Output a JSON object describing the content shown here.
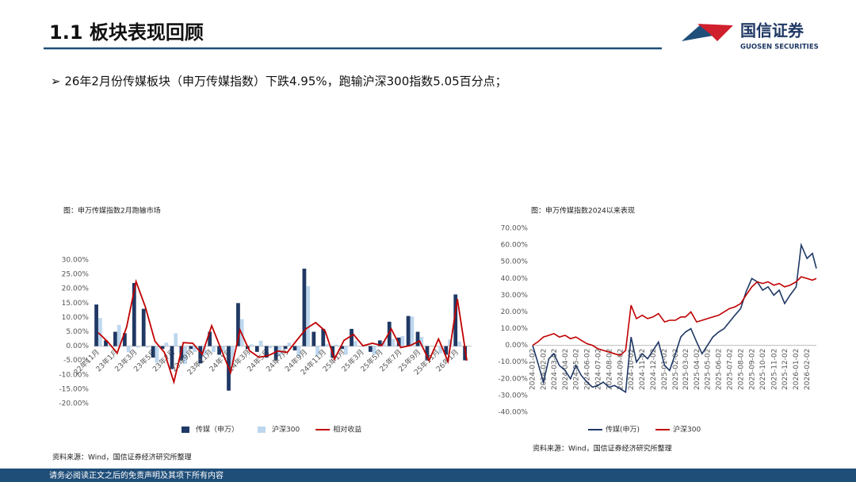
{
  "header": {
    "title": "1.1 板块表现回顾",
    "logo_name": "国信证券",
    "logo_en": "GUOSEN SECURITIES"
  },
  "bullet": "➢ 26年2月份传媒板块（申万传媒指数）下跌4.95%，跑输沪深300指数5.05百分点；",
  "footer": "请务必阅读正文之后的免责声明及其项下所有内容",
  "chart_data": [
    {
      "type": "bar",
      "title": "图：申万传媒指数2月跑输市场",
      "source": "资料来源：Wind，国信证券经济研究所整理",
      "categories": [
        "22年11月",
        null,
        "23年1月",
        null,
        "23年3月",
        null,
        "23年5月",
        null,
        "23年7月",
        null,
        "23年9月",
        null,
        "23年11月",
        null,
        "24年1月",
        null,
        "24年3月",
        null,
        "24年5月",
        null,
        "24年7月",
        null,
        "24年9月",
        null,
        "24年11月",
        null,
        "25年1月",
        null,
        "25年3月",
        null,
        "25年5月",
        null,
        "25年7月",
        null,
        "25年9月",
        null,
        "25年11月",
        null,
        "26年1月",
        null
      ],
      "series": [
        {
          "name": "传媒（申万）",
          "color": "#1f3864",
          "type": "bar",
          "values": [
            14.5,
            2,
            5,
            4.5,
            22,
            13,
            -4,
            -1,
            -8,
            -5,
            -1,
            -6,
            5,
            -3,
            -15.5,
            15,
            -1,
            -2,
            -4,
            -5,
            -1,
            -1.5,
            27,
            5,
            6,
            -4,
            -1,
            6,
            0,
            -2,
            2,
            8.5,
            3,
            10.5,
            5,
            -5,
            0,
            -3,
            18,
            -4.95
          ]
        },
        {
          "name": "沪深300",
          "color": "#bdd7ee",
          "type": "bar",
          "values": [
            9.8,
            0.5,
            7.4,
            -2.1,
            -0.5,
            -0.5,
            -5.7,
            1.2,
            4.5,
            -6.2,
            -2,
            -3.2,
            -2.1,
            -1.9,
            -6.3,
            9.4,
            0.6,
            1.9,
            -0.7,
            -3.3,
            1.2,
            -3.5,
            20.9,
            -3.2,
            0.7,
            0.5,
            -3,
            1.9,
            -0.1,
            -3,
            1.8,
            2.5,
            3.5,
            10.3,
            3.2,
            0,
            -2.5,
            2.3,
            1.6,
            0.1
          ]
        },
        {
          "name": "相对收益",
          "color": "#c00000",
          "type": "line",
          "values": [
            4.7,
            1.5,
            -2.4,
            6.6,
            22.5,
            13.5,
            1.7,
            -2.2,
            -12.5,
            1.2,
            1,
            -2.8,
            7.1,
            -1.1,
            -9.2,
            5.6,
            -1.6,
            -3.9,
            -3.3,
            -1.7,
            -2.2,
            2,
            6.1,
            8.2,
            5.3,
            -4.5,
            2,
            4.1,
            0.1,
            1,
            0.2,
            6,
            -0.5,
            0.2,
            1.8,
            -5,
            2.5,
            -5.3,
            16.4,
            -5.05
          ]
        }
      ],
      "ylim": [
        -20,
        30
      ],
      "yticks": [
        {
          "value": -20,
          "label": "-20.00%"
        },
        {
          "value": -15,
          "label": "-15.00%"
        },
        {
          "value": -10,
          "label": "-10.00%"
        },
        {
          "value": -5,
          "label": "-5.00%"
        },
        {
          "value": 0,
          "label": "0.00%"
        },
        {
          "value": 5,
          "label": "5.00%"
        },
        {
          "value": 10,
          "label": "10.00%"
        },
        {
          "value": 15,
          "label": "15.00%"
        },
        {
          "value": 20,
          "label": "20.00%"
        },
        {
          "value": 25,
          "label": "25.00%"
        },
        {
          "value": 30,
          "label": "30.00%"
        }
      ],
      "grid": false,
      "legend": "bottom"
    },
    {
      "type": "line",
      "title": "图：申万传媒指数2024以来表现",
      "source": "资料来源：Wind，国信证券经济研究所整理",
      "x": [
        "2024-01-02",
        "2024-01-16",
        "2024-02-01",
        "2024-02-16",
        "2024-03-01",
        "2024-03-16",
        "2024-04-01",
        "2024-04-16",
        "2024-05-01",
        "2024-05-16",
        "2024-06-01",
        "2024-06-16",
        "2024-07-01",
        "2024-07-16",
        "2024-08-01",
        "2024-08-16",
        "2024-09-01",
        "2024-09-16",
        "2024-10-01",
        "2024-10-16",
        "2024-11-01",
        "2024-11-16",
        "2024-12-01",
        "2024-12-16",
        "2025-01-02",
        "2025-01-16",
        "2025-02-01",
        "2025-02-16",
        "2025-03-01",
        "2025-03-16",
        "2025-04-01",
        "2025-04-16",
        "2025-05-01",
        "2025-05-16",
        "2025-06-01",
        "2025-06-16",
        "2025-07-01",
        "2025-07-16",
        "2025-08-01",
        "2025-08-16",
        "2025-09-01",
        "2025-09-16",
        "2025-10-01",
        "2025-10-16",
        "2025-11-01",
        "2025-11-16",
        "2025-12-01",
        "2025-12-16",
        "2026-01-02",
        "2026-01-16",
        "2026-02-01",
        "2026-02-16",
        "2026-02-27"
      ],
      "series": [
        {
          "name": "传媒(申万)",
          "color": "#1f3864",
          "values": [
            0,
            -10,
            -22,
            -8,
            -5,
            -12,
            -15,
            -20,
            -12,
            -18,
            -22,
            -25,
            -24,
            -22,
            -25,
            -24,
            -26,
            -28,
            5,
            -10,
            -5,
            -8,
            -3,
            2,
            -12,
            -15,
            -5,
            5,
            8,
            10,
            2,
            -5,
            0,
            5,
            8,
            10,
            14,
            18,
            22,
            32,
            40,
            38,
            33,
            35,
            30,
            33,
            25,
            30,
            35,
            60,
            52,
            55,
            46
          ]
        },
        {
          "name": "沪深300",
          "color": "#c00000",
          "values": [
            0,
            2,
            5,
            6,
            7,
            5,
            6,
            4,
            5,
            3,
            1,
            0,
            -2,
            -3,
            -4,
            -5,
            -6,
            -3,
            24,
            16,
            18,
            16,
            17,
            19,
            14,
            15,
            15,
            17,
            17,
            20,
            14,
            15,
            16,
            17,
            18,
            20,
            22,
            23,
            25,
            30,
            35,
            38,
            37,
            38,
            36,
            37,
            35,
            36,
            38,
            41,
            40,
            39,
            40
          ]
        }
      ],
      "xlim": [
        "2024-01-02",
        "2026-02-27"
      ],
      "xticks": [
        "2024-01-02",
        "2024-02-02",
        "2024-03-02",
        "2024-04-02",
        "2024-05-02",
        "2024-06-02",
        "2024-07-02",
        "2024-08-02",
        "2024-09-02",
        "2024-10-02",
        "2024-11-02",
        "2024-12-02",
        "2025-01-02",
        "2025-02-02",
        "2025-03-02",
        "2025-04-02",
        "2025-05-02",
        "2025-06-02",
        "2025-07-02",
        "2025-08-02",
        "2025-09-02",
        "2025-10-02",
        "2025-11-02",
        "2025-12-02",
        "2026-01-02",
        "2026-02-02"
      ],
      "ylim": [
        -40,
        70
      ],
      "yticks": [
        {
          "value": -40,
          "label": "-40.00%"
        },
        {
          "value": -30,
          "label": "-30.00%"
        },
        {
          "value": -20,
          "label": "-20.00%"
        },
        {
          "value": -10,
          "label": "-10.00%"
        },
        {
          "value": 0,
          "label": "0.00%"
        },
        {
          "value": 10,
          "label": "10.00%"
        },
        {
          "value": 20,
          "label": "20.00%"
        },
        {
          "value": 30,
          "label": "30.00%"
        },
        {
          "value": 40,
          "label": "40.00%"
        },
        {
          "value": 50,
          "label": "50.00%"
        },
        {
          "value": 60,
          "label": "60.00%"
        },
        {
          "value": 70,
          "label": "70.00%"
        }
      ],
      "grid": false,
      "legend": "bottom"
    }
  ]
}
